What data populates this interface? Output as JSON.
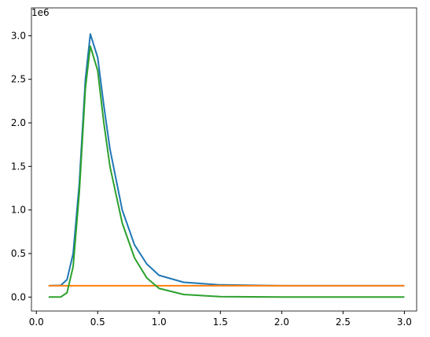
{
  "chart_data": {
    "type": "line",
    "offset_label": "1e6",
    "x": [
      0.1,
      0.2,
      0.25,
      0.3,
      0.35,
      0.4,
      0.44,
      0.5,
      0.55,
      0.6,
      0.7,
      0.8,
      0.9,
      1.0,
      1.2,
      1.5,
      2.0,
      2.5,
      3.0
    ],
    "series": [
      {
        "color": "#1f77b4",
        "values": [
          0.13,
          0.135,
          0.2,
          0.5,
          1.3,
          2.5,
          3.02,
          2.75,
          2.2,
          1.7,
          1.0,
          0.6,
          0.38,
          0.25,
          0.17,
          0.14,
          0.13,
          0.13,
          0.13
        ]
      },
      {
        "color": "#ff7f0e",
        "values": [
          0.13,
          0.13,
          0.13,
          0.13,
          0.13,
          0.13,
          0.13,
          0.13,
          0.13,
          0.13,
          0.13,
          0.13,
          0.13,
          0.13,
          0.13,
          0.13,
          0.13,
          0.13,
          0.13
        ]
      },
      {
        "color": "#2ca02c",
        "values": [
          0,
          0.002,
          0.05,
          0.35,
          1.2,
          2.4,
          2.88,
          2.6,
          2.0,
          1.5,
          0.85,
          0.45,
          0.22,
          0.1,
          0.03,
          0.005,
          0,
          0,
          0
        ]
      }
    ],
    "xlim": [
      -0.04,
      3.1
    ],
    "xticks": [
      {
        "value": 0,
        "label": "0.0"
      },
      0.5,
      {
        "value": 1,
        "label": "1.0"
      },
      1.5,
      {
        "value": 2,
        "label": "2.0"
      },
      2.5,
      {
        "value": 3,
        "label": "3.0"
      }
    ],
    "ylim": [
      -0.16,
      3.32
    ],
    "yticks": [
      {
        "value": 0,
        "label": "0.0"
      },
      0.5,
      {
        "value": 1,
        "label": "1.0"
      },
      1.5,
      {
        "value": 2,
        "label": "2.0"
      },
      2.5,
      {
        "value": 3,
        "label": "3.0"
      }
    ]
  }
}
